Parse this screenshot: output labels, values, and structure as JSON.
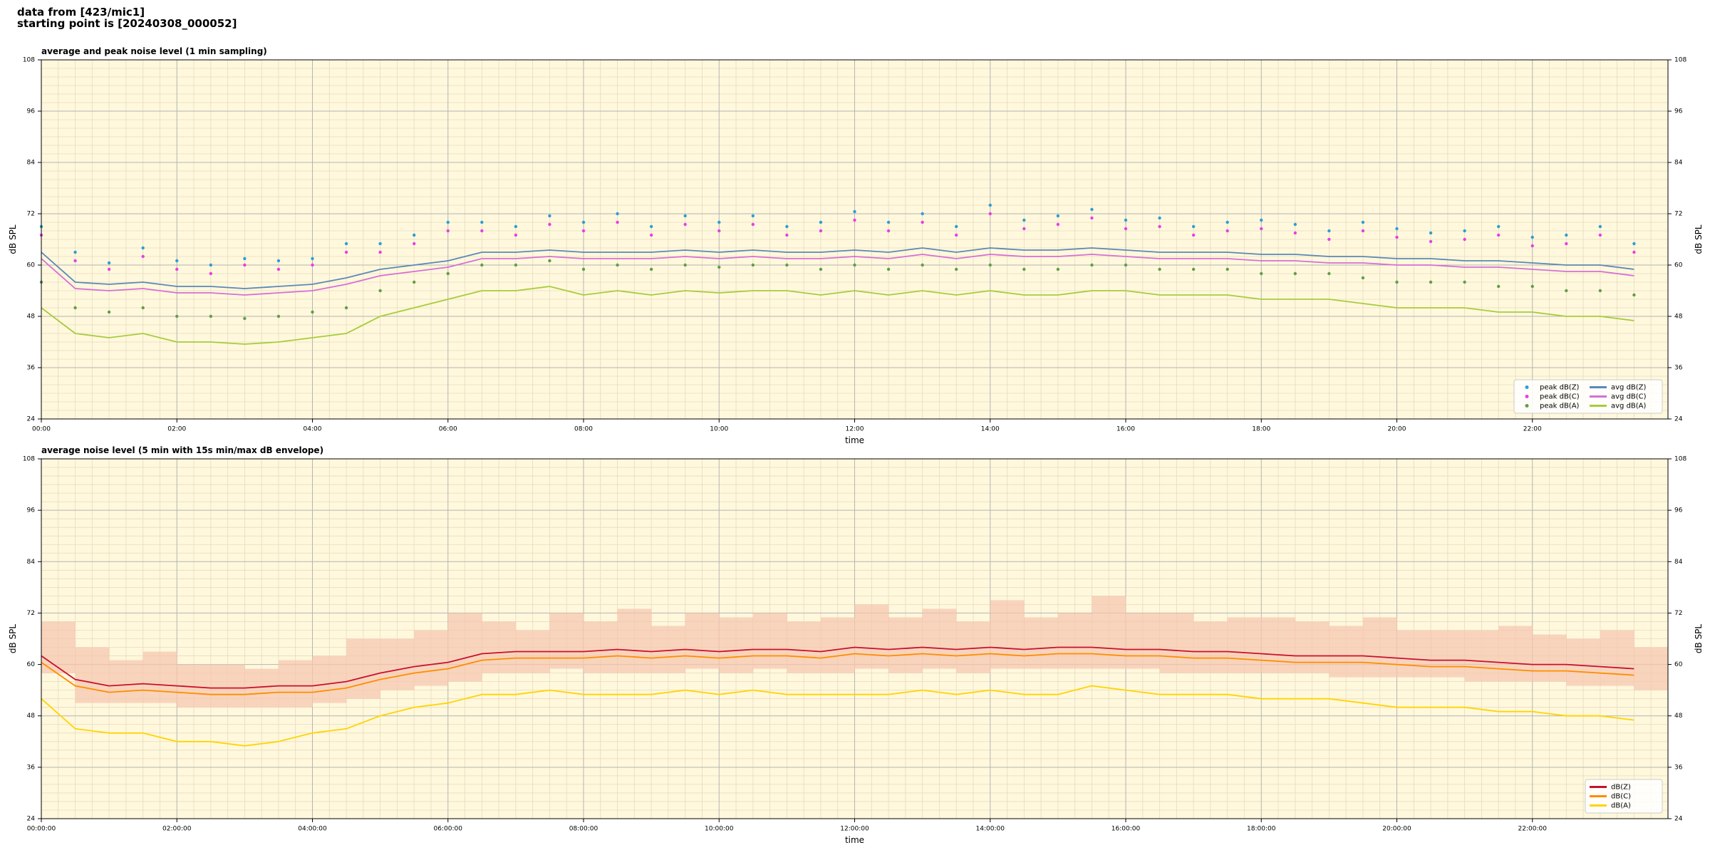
{
  "header": {
    "lines": [
      "data from [423/mic1]",
      "starting point is [20240308_000052]"
    ]
  },
  "chart_data": [
    {
      "type": "line",
      "title": "average and peak noise level (1 min sampling)",
      "xlabel": "time",
      "ylabel": "dB SPL",
      "background": "#fff8dc",
      "grid": true,
      "minor_grid": true,
      "legend": "lower right",
      "legend_columns": 2,
      "xlim": [
        0,
        24
      ],
      "xticks": [
        {
          "value": 0,
          "label": "00:00"
        },
        {
          "value": 2,
          "label": "02:00"
        },
        {
          "value": 4,
          "label": "04:00"
        },
        {
          "value": 6,
          "label": "06:00"
        },
        {
          "value": 8,
          "label": "08:00"
        },
        {
          "value": 10,
          "label": "10:00"
        },
        {
          "value": 12,
          "label": "12:00"
        },
        {
          "value": 14,
          "label": "14:00"
        },
        {
          "value": 16,
          "label": "16:00"
        },
        {
          "value": 18,
          "label": "18:00"
        },
        {
          "value": 20,
          "label": "20:00"
        },
        {
          "value": 22,
          "label": "22:00"
        }
      ],
      "ylim": [
        24,
        108
      ],
      "yticks": [
        24,
        36,
        48,
        60,
        72,
        84,
        96,
        108
      ],
      "x": [
        0,
        0.5,
        1,
        1.5,
        2,
        2.5,
        3,
        3.5,
        4,
        4.5,
        5,
        5.5,
        6,
        6.5,
        7,
        7.5,
        8,
        8.5,
        9,
        9.5,
        10,
        10.5,
        11,
        11.5,
        12,
        12.5,
        13,
        13.5,
        14,
        14.5,
        15,
        15.5,
        16,
        16.5,
        17,
        17.5,
        18,
        18.5,
        19,
        19.5,
        20,
        20.5,
        21,
        21.5,
        22,
        22.5,
        23,
        23.5
      ],
      "series": [
        {
          "name": "peak dB(Z)",
          "type": "scatter",
          "color": "#2a9fd6",
          "values": [
            69,
            63,
            60.5,
            64,
            61,
            60,
            61.5,
            61,
            61.5,
            65,
            65,
            67,
            70,
            70,
            69,
            71.5,
            70,
            72,
            69,
            71.5,
            70,
            71.5,
            69,
            70,
            72.5,
            70,
            72,
            69,
            74,
            70.5,
            71.5,
            73,
            70.5,
            71,
            69,
            70,
            70.5,
            69.5,
            68,
            70,
            68.5,
            67.5,
            68,
            69,
            66.5,
            67,
            69,
            65
          ]
        },
        {
          "name": "peak dB(C)",
          "type": "scatter",
          "color": "#e83ee8",
          "values": [
            67,
            61,
            59,
            62,
            59,
            58,
            60,
            59,
            60,
            63,
            63,
            65,
            68,
            68,
            67,
            69.5,
            68,
            70,
            67,
            69.5,
            68,
            69.5,
            67,
            68,
            70.5,
            68,
            70,
            67,
            72,
            68.5,
            69.5,
            71,
            68.5,
            69,
            67,
            68,
            68.5,
            67.5,
            66,
            68,
            66.5,
            65.5,
            66,
            67,
            64.5,
            65,
            67,
            63
          ]
        },
        {
          "name": "peak dB(A)",
          "type": "scatter",
          "color": "#5f9e4a",
          "values": [
            56,
            50,
            49,
            50,
            48,
            48,
            47.5,
            48,
            49,
            50,
            54,
            56,
            58,
            60,
            60,
            61,
            59,
            60,
            59,
            60,
            59.5,
            60,
            60,
            59,
            60,
            59,
            60,
            59,
            60,
            59,
            59,
            60,
            60,
            59,
            59,
            59,
            58,
            58,
            58,
            57,
            56,
            56,
            56,
            55,
            55,
            54,
            54,
            53
          ]
        },
        {
          "name": "avg dB(Z)",
          "type": "line",
          "color": "#5a88b8",
          "values": [
            63,
            56,
            55.5,
            56,
            55,
            55,
            54.5,
            55,
            55.5,
            57,
            59,
            60,
            61,
            63,
            63,
            63.5,
            63,
            63,
            63,
            63.5,
            63,
            63.5,
            63,
            63,
            63.5,
            63,
            64,
            63,
            64,
            63.5,
            63.5,
            64,
            63.5,
            63,
            63,
            63,
            62.5,
            62.5,
            62,
            62,
            61.5,
            61.5,
            61,
            61,
            60.5,
            60,
            60,
            59
          ]
        },
        {
          "name": "avg dB(C)",
          "type": "line",
          "color": "#d56fd8",
          "values": [
            61.5,
            54.5,
            54,
            54.5,
            53.5,
            53.5,
            53,
            53.5,
            54,
            55.5,
            57.5,
            58.5,
            59.5,
            61.5,
            61.5,
            62,
            61.5,
            61.5,
            61.5,
            62,
            61.5,
            62,
            61.5,
            61.5,
            62,
            61.5,
            62.5,
            61.5,
            62.5,
            62,
            62,
            62.5,
            62,
            61.5,
            61.5,
            61.5,
            61,
            61,
            60.5,
            60.5,
            60,
            60,
            59.5,
            59.5,
            59,
            58.5,
            58.5,
            57.5
          ]
        },
        {
          "name": "avg dB(A)",
          "type": "line",
          "color": "#a6cc3c",
          "values": [
            50,
            44,
            43,
            44,
            42,
            42,
            41.5,
            42,
            43,
            44,
            48,
            50,
            52,
            54,
            54,
            55,
            53,
            54,
            53,
            54,
            53.5,
            54,
            54,
            53,
            54,
            53,
            54,
            53,
            54,
            53,
            53,
            54,
            54,
            53,
            53,
            53,
            52,
            52,
            52,
            51,
            50,
            50,
            50,
            49,
            49,
            48,
            48,
            47
          ]
        }
      ]
    },
    {
      "type": "line",
      "title": "average noise level (5 min with 15s min/max dB envelope)",
      "xlabel": "time",
      "ylabel": "dB SPL",
      "background": "#fff8dc",
      "grid": true,
      "minor_grid": true,
      "legend": "lower right",
      "legend_columns": 1,
      "xlim": [
        0,
        24
      ],
      "xticks": [
        {
          "value": 0,
          "label": "00:00:00"
        },
        {
          "value": 2,
          "label": "02:00:00"
        },
        {
          "value": 4,
          "label": "04:00:00"
        },
        {
          "value": 6,
          "label": "06:00:00"
        },
        {
          "value": 8,
          "label": "08:00:00"
        },
        {
          "value": 10,
          "label": "10:00:00"
        },
        {
          "value": 12,
          "label": "12:00:00"
        },
        {
          "value": 14,
          "label": "14:00:00"
        },
        {
          "value": 16,
          "label": "16:00:00"
        },
        {
          "value": 18,
          "label": "18:00:00"
        },
        {
          "value": 20,
          "label": "20:00:00"
        },
        {
          "value": 22,
          "label": "22:00:00"
        }
      ],
      "ylim": [
        24,
        108
      ],
      "yticks": [
        24,
        36,
        48,
        60,
        72,
        84,
        96,
        108
      ],
      "x": [
        0,
        0.5,
        1,
        1.5,
        2,
        2.5,
        3,
        3.5,
        4,
        4.5,
        5,
        5.5,
        6,
        6.5,
        7,
        7.5,
        8,
        8.5,
        9,
        9.5,
        10,
        10.5,
        11,
        11.5,
        12,
        12.5,
        13,
        13.5,
        14,
        14.5,
        15,
        15.5,
        16,
        16.5,
        17,
        17.5,
        18,
        18.5,
        19,
        19.5,
        20,
        20.5,
        21,
        21.5,
        22,
        22.5,
        23,
        23.5
      ],
      "envelope": {
        "color": "#f6c4ae",
        "min": [
          58,
          51,
          51,
          51,
          50,
          50,
          50,
          50,
          51,
          52,
          54,
          55,
          56,
          58,
          58,
          59,
          58,
          58,
          58,
          59,
          58,
          59,
          58,
          58,
          59,
          58,
          59,
          58,
          59,
          59,
          59,
          59,
          59,
          58,
          58,
          58,
          58,
          58,
          57,
          57,
          57,
          57,
          56,
          56,
          56,
          55,
          55,
          54
        ],
        "max": [
          70,
          64,
          61,
          63,
          60,
          60,
          59,
          61,
          62,
          66,
          66,
          68,
          72,
          70,
          68,
          72,
          70,
          73,
          69,
          72,
          71,
          72,
          70,
          71,
          74,
          71,
          73,
          70,
          75,
          71,
          72,
          76,
          72,
          72,
          70,
          71,
          71,
          70,
          69,
          71,
          68,
          68,
          68,
          69,
          67,
          66,
          68,
          64
        ]
      },
      "series": [
        {
          "name": "dB(Z)",
          "type": "line",
          "color": "#c8102e",
          "values": [
            62,
            56.5,
            55,
            55.5,
            55,
            54.5,
            54.5,
            55,
            55,
            56,
            58,
            59.5,
            60.5,
            62.5,
            63,
            63,
            63,
            63.5,
            63,
            63.5,
            63,
            63.5,
            63.5,
            63,
            64,
            63.5,
            64,
            63.5,
            64,
            63.5,
            64,
            64,
            63.5,
            63.5,
            63,
            63,
            62.5,
            62,
            62,
            62,
            61.5,
            61,
            61,
            60.5,
            60,
            60,
            59.5,
            59
          ]
        },
        {
          "name": "dB(C)",
          "type": "line",
          "color": "#ff8c00",
          "values": [
            60.5,
            55,
            53.5,
            54,
            53.5,
            53,
            53,
            53.5,
            53.5,
            54.5,
            56.5,
            58,
            59,
            61,
            61.5,
            61.5,
            61.5,
            62,
            61.5,
            62,
            61.5,
            62,
            62,
            61.5,
            62.5,
            62,
            62.5,
            62,
            62.5,
            62,
            62.5,
            62.5,
            62,
            62,
            61.5,
            61.5,
            61,
            60.5,
            60.5,
            60.5,
            60,
            59.5,
            59.5,
            59,
            58.5,
            58.5,
            58,
            57.5
          ]
        },
        {
          "name": "dB(A)",
          "type": "line",
          "color": "#ffd400",
          "values": [
            52,
            45,
            44,
            44,
            42,
            42,
            41,
            42,
            44,
            45,
            48,
            50,
            51,
            53,
            53,
            54,
            53,
            53,
            53,
            54,
            53,
            54,
            53,
            53,
            53,
            53,
            54,
            53,
            54,
            53,
            53,
            55,
            54,
            53,
            53,
            53,
            52,
            52,
            52,
            51,
            50,
            50,
            50,
            49,
            49,
            48,
            48,
            47
          ]
        }
      ]
    }
  ]
}
